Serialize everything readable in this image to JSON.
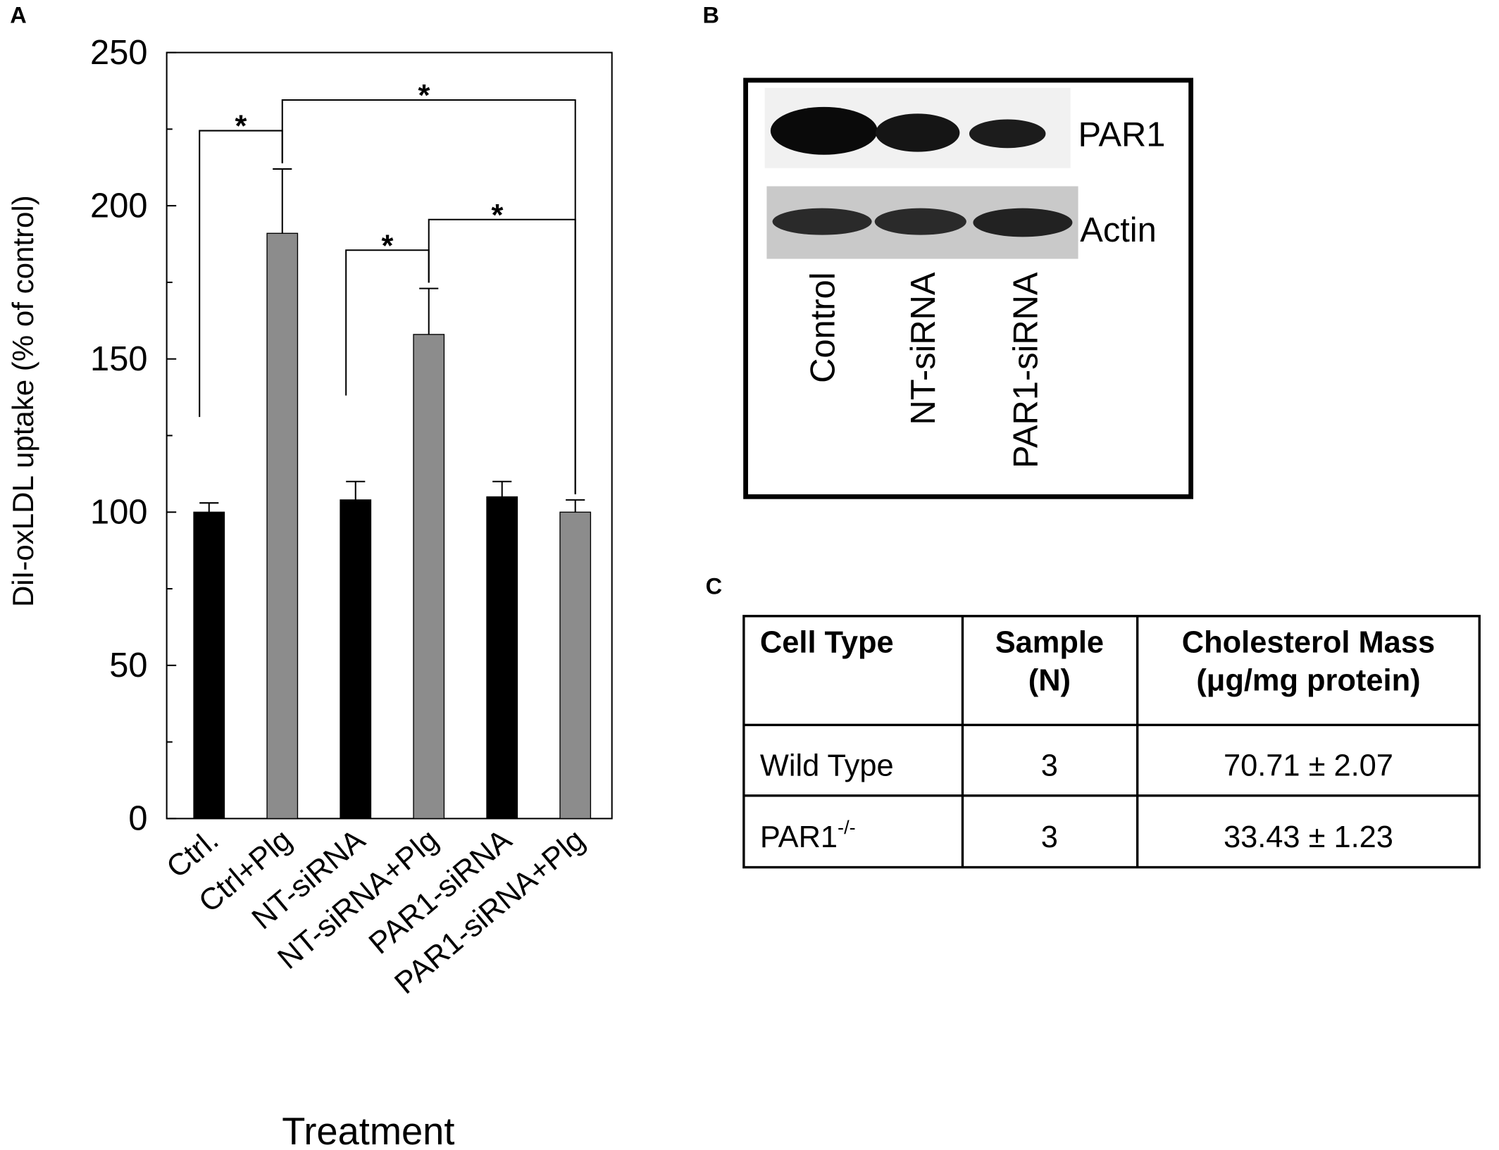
{
  "panel_labels": [
    "A",
    "B",
    "C"
  ],
  "chart_data": {
    "type": "bar",
    "ylabel": "DiI-oxLDL uptake (% of control)",
    "xlabel": "Treatment",
    "categories": [
      "Ctrl.",
      "Ctrl+Plg",
      "NT-siRNA",
      "NT-siRNA+Plg",
      "PAR1-siRNA",
      "PAR1-siRNA+Plg"
    ],
    "values": [
      100,
      191,
      104,
      158,
      105,
      100
    ],
    "errors": [
      3,
      21,
      6,
      15,
      5,
      4
    ],
    "colors": [
      "#000000",
      "#8c8c8c",
      "#000000",
      "#8c8c8c",
      "#000000",
      "#8c8c8c"
    ],
    "ylim": [
      0,
      250
    ],
    "yticks": [
      0,
      50,
      100,
      150,
      200,
      250
    ],
    "yminor_ticks": [
      25,
      75,
      125,
      175,
      225
    ],
    "significance": [
      {
        "from": 0,
        "to": 1,
        "label": "*"
      },
      {
        "from": 1,
        "to": 5,
        "label": "*"
      },
      {
        "from": 2,
        "to": 3,
        "label": "*"
      },
      {
        "from": 3,
        "to": 5,
        "label": "*"
      }
    ]
  },
  "blot": {
    "bands": [
      "PAR1",
      "Actin"
    ],
    "lanes": [
      "Control",
      "NT-siRNA",
      "PAR1-siRNA"
    ]
  },
  "table": {
    "header": [
      [
        "Cell Type"
      ],
      [
        "Sample",
        "(N)"
      ],
      [
        "Cholesterol Mass",
        "(μg/mg protein)"
      ]
    ],
    "rows": [
      [
        "Wild Type",
        "3",
        "70.71 ± 2.07"
      ],
      [
        {
          "base": "PAR1",
          "sup": "-/-"
        },
        "3",
        "33.43 ± 1.23"
      ]
    ]
  }
}
